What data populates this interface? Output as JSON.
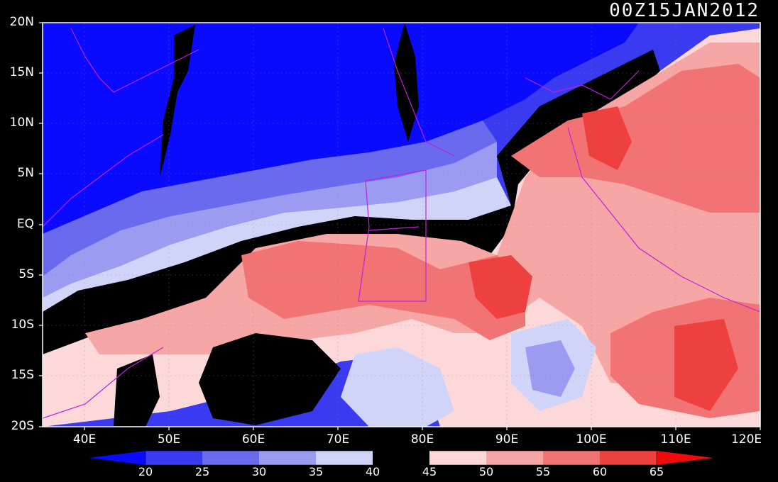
{
  "title": "00Z15JAN2012",
  "lat_labels": [
    "20N",
    "15N",
    "10N",
    "5N",
    "EQ",
    "5S",
    "10S",
    "15S",
    "20S"
  ],
  "lon_labels": [
    "40E",
    "50E",
    "60E",
    "70E",
    "80E",
    "90E",
    "100E",
    "110E",
    "120E"
  ],
  "colorbar": {
    "levels": [
      "20",
      "25",
      "30",
      "35",
      "40",
      "45",
      "50",
      "55",
      "60",
      "65"
    ],
    "colors": [
      "#0a0aff",
      "#3a3af0",
      "#6a6aee",
      "#9b9bf2",
      "#cfd4f8",
      "#000000",
      "#fcd8d8",
      "#f7a6a6",
      "#f27373",
      "#ef4040",
      "#f00a0a"
    ]
  },
  "map": {
    "lon_range": [
      35,
      120
    ],
    "lat_range": [
      -20,
      20
    ],
    "coastline_color": "#c020e0"
  }
}
